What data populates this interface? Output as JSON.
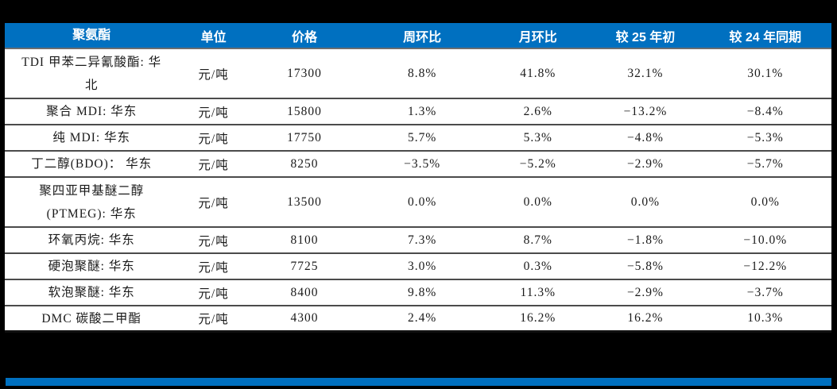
{
  "table": {
    "columns": [
      {
        "key": "name",
        "label": "聚氨酯"
      },
      {
        "key": "unit",
        "label": "单位"
      },
      {
        "key": "price",
        "label": "价格"
      },
      {
        "key": "wow",
        "label": "周环比"
      },
      {
        "key": "mom",
        "label": "月环比"
      },
      {
        "key": "ytd",
        "label": "较 25 年初"
      },
      {
        "key": "yoy",
        "label": "较 24 年同期"
      }
    ],
    "rows": [
      {
        "name": "TDI 甲苯二异氰酸酯: 华\n北",
        "unit": "元/吨",
        "price": "17300",
        "wow": "8.8%",
        "mom": "41.8%",
        "ytd": "32.1%",
        "yoy": "30.1%"
      },
      {
        "name": "聚合 MDI: 华东",
        "unit": "元/吨",
        "price": "15800",
        "wow": "1.3%",
        "mom": "2.6%",
        "ytd": "−13.2%",
        "yoy": "−8.4%"
      },
      {
        "name": "纯 MDI: 华东",
        "unit": "元/吨",
        "price": "17750",
        "wow": "5.7%",
        "mom": "5.3%",
        "ytd": "−4.8%",
        "yoy": "−5.3%"
      },
      {
        "name": "丁二醇(BDO)： 华东",
        "unit": "元/吨",
        "price": "8250",
        "wow": "−3.5%",
        "mom": "−5.2%",
        "ytd": "−2.9%",
        "yoy": "−5.7%"
      },
      {
        "name": "聚四亚甲基醚二醇\n(PTMEG): 华东",
        "unit": "元/吨",
        "price": "13500",
        "wow": "0.0%",
        "mom": "0.0%",
        "ytd": "0.0%",
        "yoy": "0.0%"
      },
      {
        "name": "环氧丙烷: 华东",
        "unit": "元/吨",
        "price": "8100",
        "wow": "7.3%",
        "mom": "8.7%",
        "ytd": "−1.8%",
        "yoy": "−10.0%"
      },
      {
        "name": "硬泡聚醚: 华东",
        "unit": "元/吨",
        "price": "7725",
        "wow": "3.0%",
        "mom": "0.3%",
        "ytd": "−5.8%",
        "yoy": "−12.2%"
      },
      {
        "name": "软泡聚醚: 华东",
        "unit": "元/吨",
        "price": "8400",
        "wow": "9.8%",
        "mom": "11.3%",
        "ytd": "−2.9%",
        "yoy": "−3.7%"
      },
      {
        "name": "DMC 碳酸二甲酯",
        "unit": "元/吨",
        "price": "4300",
        "wow": "2.4%",
        "mom": "16.2%",
        "ytd": "16.2%",
        "yoy": "10.3%"
      }
    ]
  },
  "colors": {
    "header_bg": "#0070C0",
    "accent_bar": "#0070C0",
    "page_bg": "#000000",
    "table_bg": "#ffffff",
    "text": "#1a1a1a",
    "header_text": "#ffffff"
  }
}
